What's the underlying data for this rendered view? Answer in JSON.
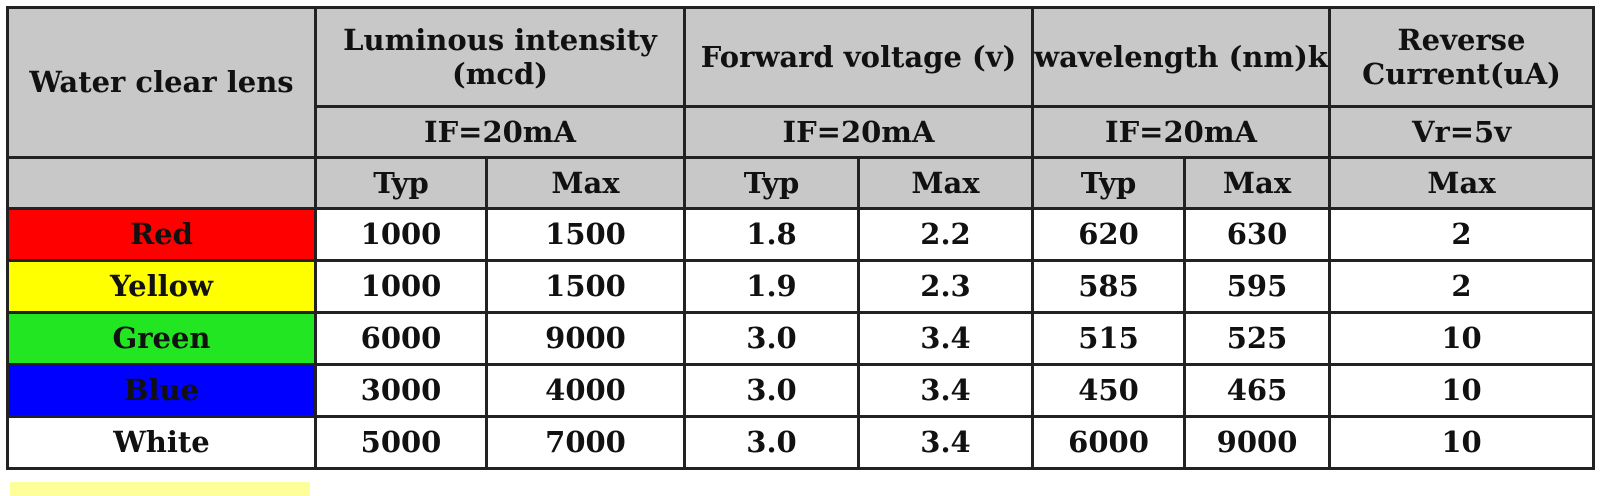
{
  "table": {
    "lens_label": "Water clear lens",
    "groups": [
      {
        "title": "Luminous intensity (mcd)",
        "condition": "IF=20mA"
      },
      {
        "title": "Forward voltage (v)",
        "condition": "IF=20mA"
      },
      {
        "title": "wavelength (nm)k",
        "condition": "IF=20mA"
      },
      {
        "title": "Reverse Current(uA)",
        "condition": "Vr=5v"
      }
    ],
    "subheaders": [
      "Typ",
      "Max",
      "Typ",
      "Max",
      "Typ",
      "Max",
      "Max"
    ],
    "rows": [
      {
        "color_name": "Red",
        "color_hex": "#ff0000",
        "values": [
          "1000",
          "1500",
          "1.8",
          "2.2",
          "620",
          "630",
          "2"
        ]
      },
      {
        "color_name": "Yellow",
        "color_hex": "#ffff00",
        "values": [
          "1000",
          "1500",
          "1.9",
          "2.3",
          "585",
          "595",
          "2"
        ]
      },
      {
        "color_name": "Green",
        "color_hex": "#22e622",
        "values": [
          "6000",
          "9000",
          "3.0",
          "3.4",
          "515",
          "525",
          "10"
        ]
      },
      {
        "color_name": "Blue",
        "color_hex": "#0000ff",
        "values": [
          "3000",
          "4000",
          "3.0",
          "3.4",
          "450",
          "465",
          "10"
        ]
      },
      {
        "color_name": "White",
        "color_hex": "#ffffff",
        "values": [
          "5000",
          "7000",
          "3.0",
          "3.4",
          "6000",
          "9000",
          "10"
        ]
      }
    ],
    "header_bg": "#c8c8c8"
  }
}
